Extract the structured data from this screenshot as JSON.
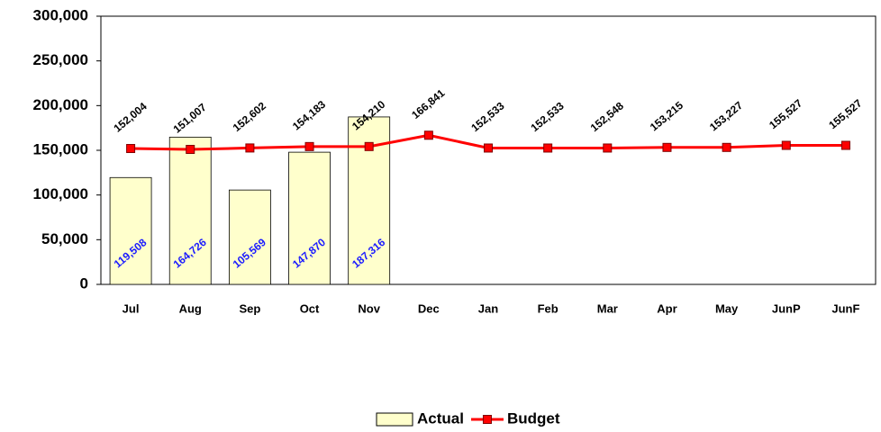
{
  "chart_data": {
    "type": "bar-line",
    "categories": [
      "Jul",
      "Aug",
      "Sep",
      "Oct",
      "Nov",
      "Dec",
      "Jan",
      "Feb",
      "Mar",
      "Apr",
      "May",
      "JunP",
      "JunF"
    ],
    "series": [
      {
        "name": "Actual",
        "type": "bar",
        "color": "#ffffcc",
        "label_color": "#1a1aff",
        "values": [
          119508,
          164726,
          105569,
          147870,
          187316,
          null,
          null,
          null,
          null,
          null,
          null,
          null,
          null
        ],
        "value_labels": [
          "119,508",
          "164,726",
          "105,569",
          "147,870",
          "187,316",
          null,
          null,
          null,
          null,
          null,
          null,
          null,
          null
        ]
      },
      {
        "name": "Budget",
        "type": "line",
        "color": "#ff0000",
        "label_color": "#000000",
        "values": [
          152004,
          151007,
          152602,
          154183,
          154210,
          166841,
          152533,
          152533,
          152548,
          153215,
          153227,
          155527,
          155527
        ],
        "value_labels": [
          "152,004",
          "151,007",
          "152,602",
          "154,183",
          "154,210",
          "166,841",
          "152,533",
          "152,533",
          "152,548",
          "153,215",
          "153,227",
          "155,527",
          "155,527"
        ]
      }
    ],
    "ylim": [
      0,
      300000
    ],
    "yticks": [
      0,
      {
        "value": 50000,
        "label": "50,000"
      },
      {
        "value": 100000,
        "label": "100,000"
      },
      {
        "value": 150000,
        "label": "150,000"
      },
      {
        "value": 200000,
        "label": "200,000"
      },
      {
        "value": 250000,
        "label": "250,000"
      },
      {
        "value": 300000,
        "label": "300,000"
      }
    ],
    "legend": "bottom"
  }
}
